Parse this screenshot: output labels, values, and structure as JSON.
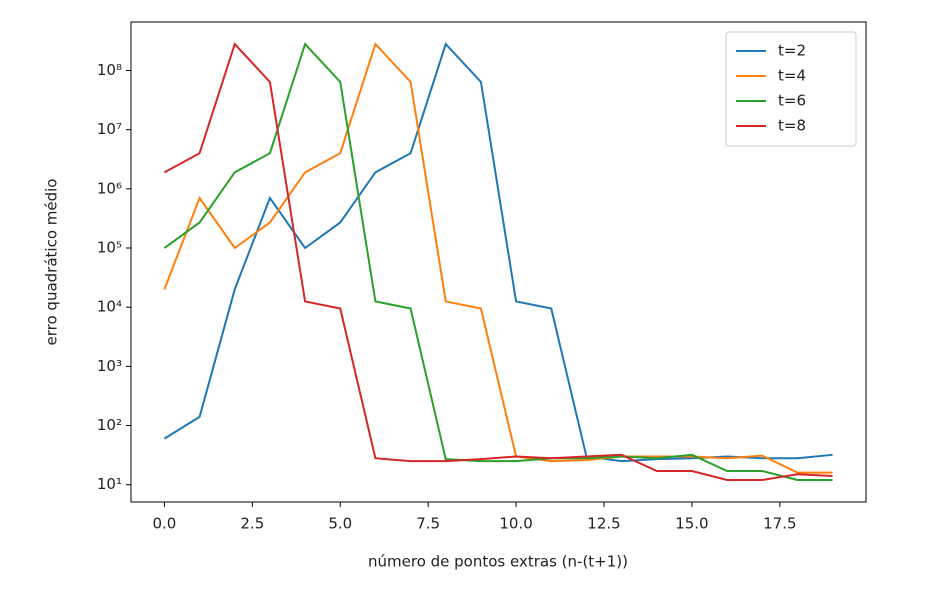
{
  "chart_data": {
    "type": "line",
    "xlabel": "número de pontos extras (n-(t+1))",
    "ylabel": "erro quadrático médio",
    "log_y": true,
    "legend": "upper right",
    "x": [
      0,
      1,
      2,
      3,
      4,
      5,
      6,
      7,
      8,
      9,
      10,
      11,
      12,
      13,
      14,
      15,
      16,
      17,
      18,
      19
    ],
    "xlim": [
      -0.95,
      19.95
    ],
    "xticks": [
      {
        "value": 0,
        "label": "0.0"
      },
      {
        "value": 2.5,
        "label": "2.5"
      },
      {
        "value": 5,
        "label": "5.0"
      },
      {
        "value": 7.5,
        "label": "7.5"
      },
      {
        "value": 10,
        "label": "10.0"
      },
      {
        "value": 12.5,
        "label": "12.5"
      },
      {
        "value": 15,
        "label": "15.0"
      },
      {
        "value": 17.5,
        "label": "17.5"
      }
    ],
    "ylim": [
      5.1,
      660000000
    ],
    "yticks": [
      {
        "value": 10,
        "label": "10¹"
      },
      {
        "value": 100,
        "label": "10²"
      },
      {
        "value": 1000,
        "label": "10³"
      },
      {
        "value": 10000,
        "label": "10⁴"
      },
      {
        "value": 100000,
        "label": "10⁵"
      },
      {
        "value": 1000000,
        "label": "10⁶"
      },
      {
        "value": 10000000,
        "label": "10⁷"
      },
      {
        "value": 100000000,
        "label": "10⁸"
      }
    ],
    "series": [
      {
        "name": "t=2",
        "color": "#1f77b4",
        "values": [
          60,
          140,
          20000,
          700000,
          100000,
          270000,
          1900000,
          4000000,
          280000000,
          64000000,
          12500,
          9500,
          30,
          25,
          27,
          28,
          30,
          28,
          28,
          32
        ]
      },
      {
        "name": "t=4",
        "color": "#ff7f0e",
        "values": [
          20000,
          700000,
          100000,
          270000,
          1900000,
          4000000,
          280000000,
          64000000,
          12500,
          9500,
          30,
          25,
          26,
          30,
          30,
          30,
          28,
          31,
          16,
          16
        ]
      },
      {
        "name": "t=6",
        "color": "#2ca02c",
        "values": [
          100000,
          270000,
          1900000,
          4000000,
          280000000,
          64000000,
          12500,
          9500,
          27,
          25,
          25,
          28,
          28,
          30,
          28,
          32,
          17,
          17,
          12,
          12
        ]
      },
      {
        "name": "t=8",
        "color": "#d62728",
        "values": [
          1900000,
          4000000,
          280000000,
          64000000,
          12500,
          9500,
          28,
          25,
          25,
          27,
          30,
          28,
          30,
          32,
          17,
          17,
          12,
          12,
          15,
          14
        ]
      }
    ]
  }
}
